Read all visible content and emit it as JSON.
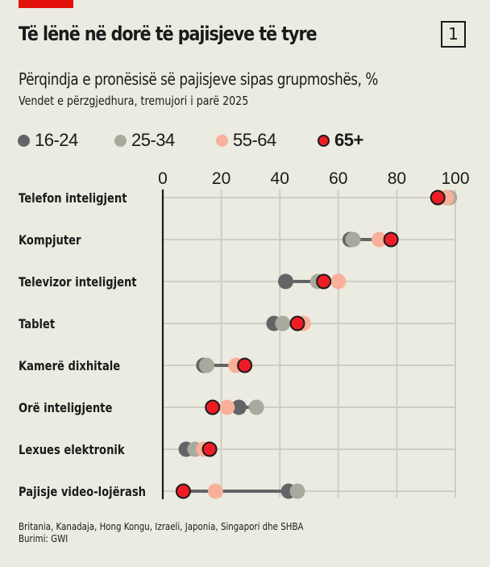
{
  "header": {
    "title": "Të lënë në dorë të pajisjeve të tyre",
    "badge": "1",
    "subtitle": "Përqindja e pronësisë së pajisjeve sipas grupmoshës, %",
    "subtitle2": "Vendet e përzgjedhura, tremujori i parë 2025"
  },
  "footer": {
    "note": "Britania, Kanadaja, Hong Kongu, Izraeli, Japonia, Singapori dhe SHBA",
    "source": "Burimi: GWI"
  },
  "colors": {
    "background": "#ecebe1",
    "accent": "#e3120b",
    "16-24": "#636466",
    "25-34": "#a9aa9e",
    "55-64": "#f8b09a",
    "65+": "#ee1c25",
    "connector": "#636466",
    "grid": "#cfcec5"
  },
  "chart_data": {
    "type": "dot-plot",
    "title": "Të lënë në dorë të pajisjeve të tyre",
    "subtitle": "Përqindja e pronësisë së pajisjeve sipas grupmoshës, %",
    "xlabel": "",
    "ylabel": "",
    "xlim": [
      0,
      100
    ],
    "ticks": [
      "0",
      "20",
      "40",
      "60",
      "80",
      "100"
    ],
    "tick_values": [
      0,
      20,
      40,
      60,
      80,
      100
    ],
    "grid": true,
    "legend_position": "top-left",
    "legend": [
      {
        "name": "16-24",
        "key": "16-24",
        "bold": false
      },
      {
        "name": "25-34",
        "key": "25-34",
        "bold": false
      },
      {
        "name": "55-64",
        "key": "55-64",
        "bold": false
      },
      {
        "name": "65+",
        "key": "65+",
        "bold": true
      }
    ],
    "categories": [
      "Telefon inteligjent",
      "Kompjuter",
      "Televizor inteligjent",
      "Tablet",
      "Kamerë dixhitale",
      "Orë inteligjente",
      "Lexues elektronik",
      "Pajisje video-lojërash"
    ],
    "series": [
      {
        "name": "16-24",
        "values": [
          97,
          64,
          42,
          38,
          14,
          26,
          8,
          43
        ]
      },
      {
        "name": "25-34",
        "values": [
          98,
          65,
          53,
          41,
          15,
          32,
          11,
          46
        ]
      },
      {
        "name": "55-64",
        "values": [
          97,
          74,
          60,
          48,
          25,
          22,
          14,
          18
        ]
      },
      {
        "name": "65+",
        "values": [
          94,
          78,
          55,
          46,
          28,
          17,
          16,
          7
        ]
      }
    ]
  }
}
